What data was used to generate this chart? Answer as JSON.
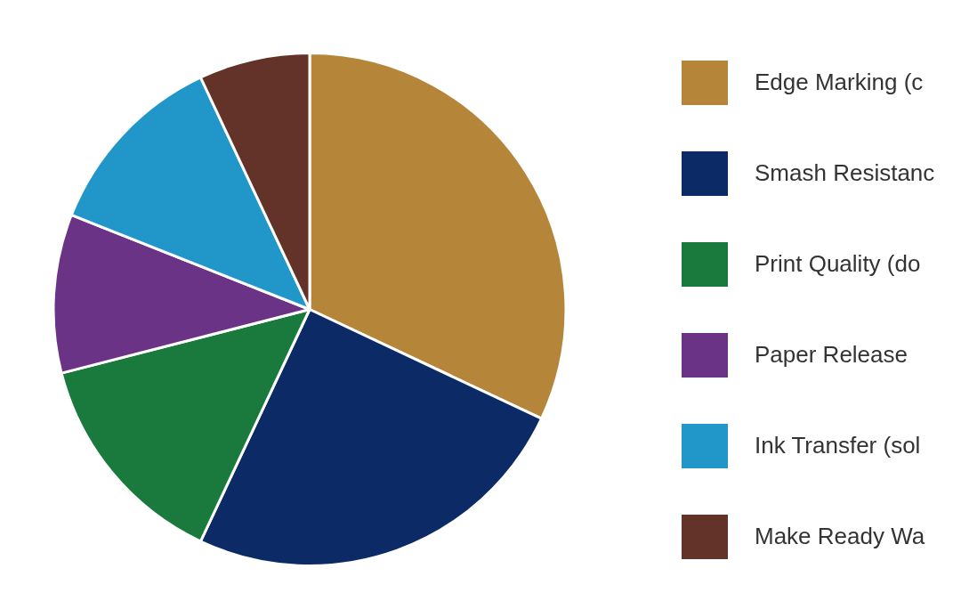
{
  "chart_data": {
    "type": "pie",
    "categories": [
      "Edge Marking (c",
      "Smash Resistanc",
      "Print Quality (do",
      "Paper Release",
      "Ink Transfer (sol",
      "Make Ready Wa"
    ],
    "values": [
      32,
      25,
      14,
      10,
      12,
      7
    ],
    "colors": [
      "#b5863a",
      "#0b2a66",
      "#1a7a3e",
      "#6a3385",
      "#2196c8",
      "#63332a"
    ],
    "legend": "right"
  }
}
